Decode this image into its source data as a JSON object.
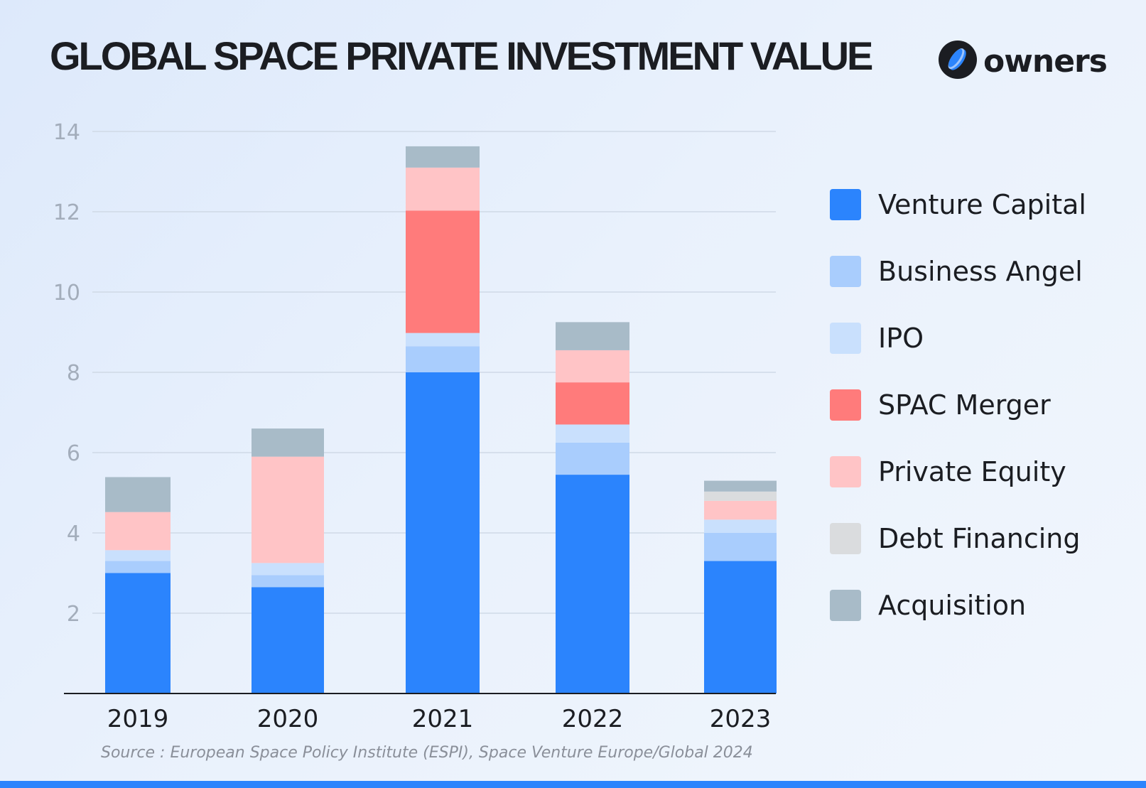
{
  "header": {
    "title": "GLOBAL SPACE PRIVATE INVESTMENT VALUE"
  },
  "logo": {
    "text": "owners",
    "icon": "owners-coin-icon"
  },
  "source": "Source : European Space Policy Institute (ESPI), Space Venture Europe/Global 2024",
  "colors": {
    "venture_capital": "#2b84fd",
    "business_angel": "#a9cdfd",
    "ipo": "#c9e0fd",
    "spac_merger": "#ff7b7b",
    "private_equity": "#ffc4c6",
    "debt_financing": "#dadcde",
    "acquisition": "#a8bbc8",
    "accent_bar": "#2b84fd"
  },
  "chart_data": {
    "type": "bar",
    "stacked": true,
    "title": "GLOBAL SPACE PRIVATE INVESTMENT VALUE",
    "xlabel": "",
    "ylabel": "",
    "ylim": [
      0,
      14
    ],
    "yticks": [
      2,
      4,
      6,
      8,
      10,
      12,
      14
    ],
    "grid": true,
    "legend_position": "right",
    "categories": [
      "2019",
      "2020",
      "2021",
      "2022",
      "2023"
    ],
    "series": [
      {
        "name": "Venture Capital",
        "key": "venture_capital",
        "values": [
          3.0,
          2.65,
          8.0,
          5.45,
          3.3
        ]
      },
      {
        "name": "Business Angel",
        "key": "business_angel",
        "values": [
          0.3,
          0.3,
          0.65,
          0.8,
          0.7
        ]
      },
      {
        "name": "IPO",
        "key": "ipo",
        "values": [
          0.27,
          0.3,
          0.33,
          0.45,
          0.33
        ]
      },
      {
        "name": "SPAC Merger",
        "key": "spac_merger",
        "values": [
          0,
          0,
          3.05,
          1.05,
          0
        ]
      },
      {
        "name": "Private Equity",
        "key": "private_equity",
        "values": [
          0.95,
          2.65,
          1.07,
          0.8,
          0.47
        ]
      },
      {
        "name": "Debt Financing",
        "key": "debt_financing",
        "values": [
          0,
          0,
          0,
          0,
          0.23
        ]
      },
      {
        "name": "Acquisition",
        "key": "acquisition",
        "values": [
          0.87,
          0.7,
          0.53,
          0.7,
          0.27
        ]
      }
    ]
  }
}
